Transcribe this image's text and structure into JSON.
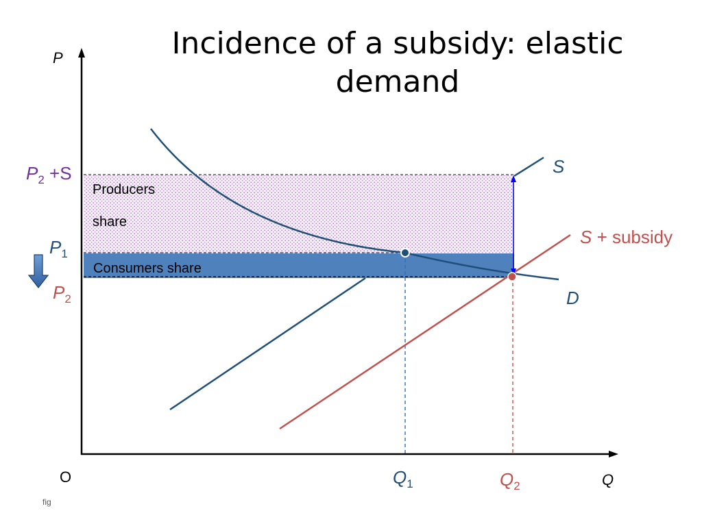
{
  "title": {
    "line1": "Incidence of a subsidy:  elastic",
    "line2": "demand"
  },
  "axes": {
    "y_label": "P",
    "x_label": "Q",
    "origin_label": "O"
  },
  "price_labels": {
    "p2_plus_s": {
      "main": "P",
      "sub": "2",
      "suffix": " +S"
    },
    "p1": {
      "main": "P",
      "sub": "1"
    },
    "p2": {
      "main": "P",
      "sub": "2"
    }
  },
  "quantity_labels": {
    "q1": {
      "main": "Q",
      "sub": "1"
    },
    "q2": {
      "main": "Q",
      "sub": "2"
    }
  },
  "curve_labels": {
    "supply": "S",
    "subsidy_supply": {
      "main": "S",
      "suffix": " + subsidy"
    },
    "demand": "D"
  },
  "areas": {
    "producers_line1": "Producers",
    "producers_line2": "share",
    "consumers": "Consumers share"
  },
  "footnote": "fig",
  "colors": {
    "dark_blue": "#1F4E79",
    "red": "#C0504D",
    "purple": "#7030A0",
    "consumer_fill": "#4F81BD",
    "producer_dots": "#A070B8",
    "arrow_blue": "#0000FF"
  },
  "icons": {
    "down_arrow": "down-arrow-icon"
  }
}
